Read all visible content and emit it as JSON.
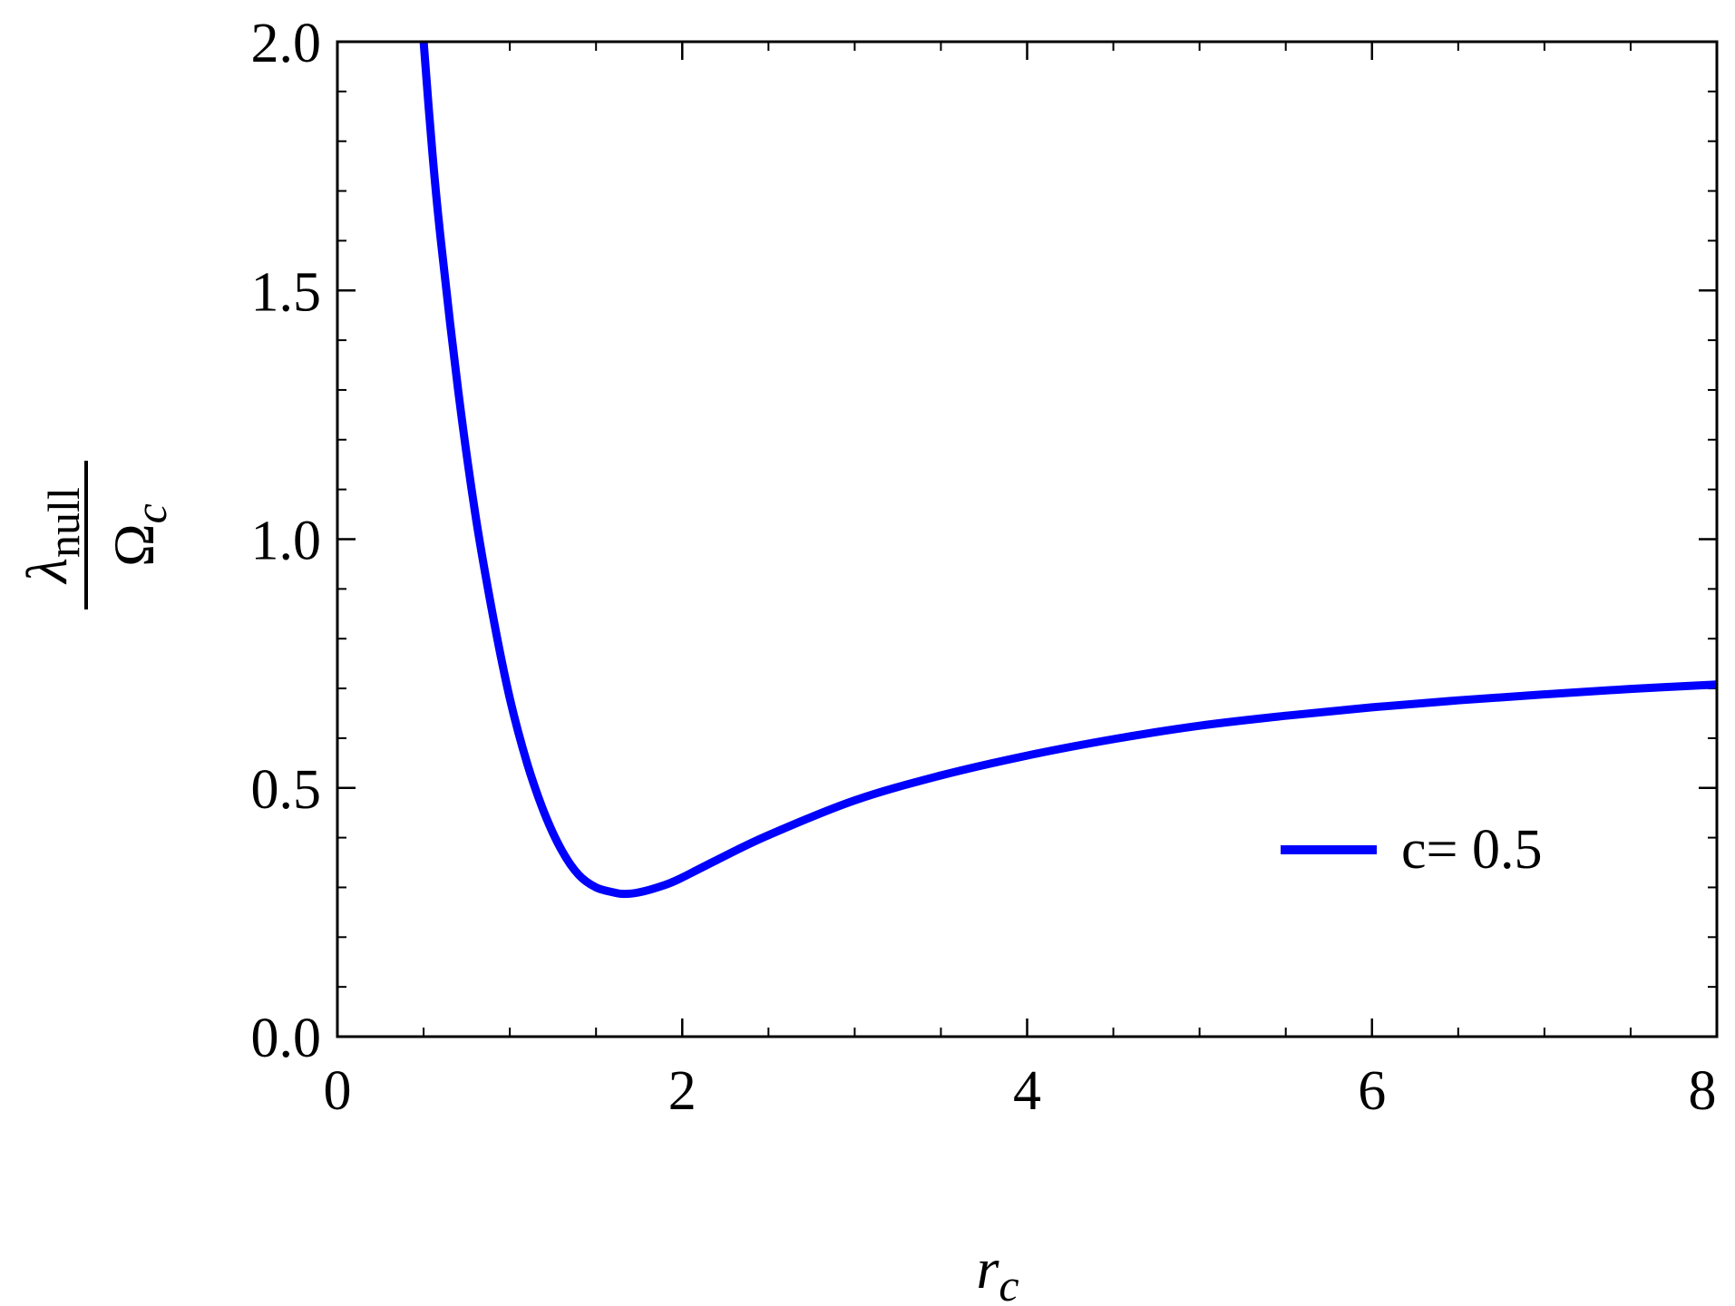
{
  "chart_data": {
    "type": "line",
    "xlabel": {
      "base": "r",
      "subscript": "c"
    },
    "ylabel": {
      "numerator": {
        "base": "λ",
        "subscript": "null"
      },
      "denominator": {
        "base": "Ω",
        "subscript": "c"
      }
    },
    "xlim": [
      0,
      8
    ],
    "ylim": [
      0,
      2
    ],
    "x_ticks": [
      "0",
      "2",
      "4",
      "6",
      "8"
    ],
    "y_ticks": [
      "0.0",
      "0.5",
      "1.0",
      "1.5",
      "2.0"
    ],
    "x_minor_step": 0.5,
    "y_minor_step": 0.1,
    "grid": false,
    "legend": {
      "position": "right",
      "entries": [
        {
          "label": "c= 0.5",
          "color": "#0000ff"
        }
      ]
    },
    "series": [
      {
        "name": "c= 0.5",
        "color": "#0000ff",
        "x": [
          0.5,
          0.55,
          0.6,
          0.7,
          0.8,
          0.9,
          1.0,
          1.1,
          1.2,
          1.3,
          1.4,
          1.5,
          1.6,
          1.66,
          1.75,
          1.9,
          2.0,
          2.2,
          2.5,
          3.0,
          3.5,
          4.0,
          4.5,
          5.0,
          5.5,
          6.0,
          6.5,
          7.0,
          7.5,
          8.0
        ],
        "y": [
          2.0,
          1.78,
          1.6,
          1.3,
          1.05,
          0.85,
          0.68,
          0.55,
          0.45,
          0.375,
          0.325,
          0.3,
          0.29,
          0.287,
          0.29,
          0.305,
          0.32,
          0.355,
          0.405,
          0.475,
          0.525,
          0.565,
          0.598,
          0.625,
          0.645,
          0.662,
          0.676,
          0.688,
          0.699,
          0.708
        ]
      }
    ]
  }
}
